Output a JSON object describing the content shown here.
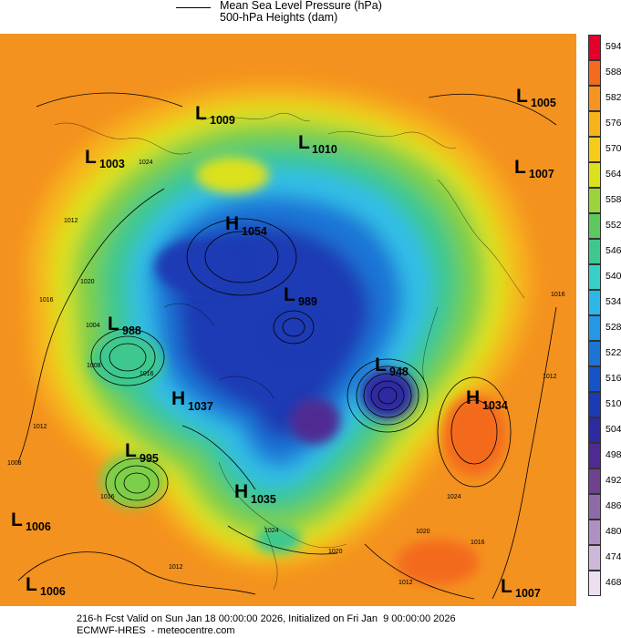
{
  "header": {
    "legend_msl": "Mean Sea Level Pressure (hPa)",
    "legend_hgt": "500-hPa Heights (dam)"
  },
  "colorbar": {
    "levels": [
      "594",
      "588",
      "582",
      "576",
      "570",
      "564",
      "558",
      "552",
      "546",
      "540",
      "534",
      "528",
      "522",
      "516",
      "510",
      "504",
      "498",
      "492",
      "486",
      "480",
      "474",
      "468"
    ],
    "colors": [
      "#e4002b",
      "#f46a1e",
      "#f7931f",
      "#f8b21a",
      "#f6cc1a",
      "#dbe11c",
      "#9ad33a",
      "#5bc95d",
      "#3ec88e",
      "#38d0c6",
      "#2db7e8",
      "#2597e6",
      "#1c74d6",
      "#1652c8",
      "#1b3bb4",
      "#2f2aa2",
      "#4f2a93",
      "#6f428f",
      "#8f6aa9",
      "#ae90c2",
      "#cdb8db",
      "#ece0f0"
    ]
  },
  "systems": [
    {
      "type": "L",
      "value": "1003"
    },
    {
      "type": "L",
      "value": "1009"
    },
    {
      "type": "L",
      "value": "1010"
    },
    {
      "type": "L",
      "value": "1005"
    },
    {
      "type": "L",
      "value": "1007"
    },
    {
      "type": "H",
      "value": "1054"
    },
    {
      "type": "L",
      "value": "988"
    },
    {
      "type": "L",
      "value": "989"
    },
    {
      "type": "L",
      "value": "948"
    },
    {
      "type": "H",
      "value": "1037"
    },
    {
      "type": "H",
      "value": "1034"
    },
    {
      "type": "L",
      "value": "995"
    },
    {
      "type": "H",
      "value": "1035"
    },
    {
      "type": "L",
      "value": "1006"
    },
    {
      "type": "L",
      "value": "1006"
    },
    {
      "type": "L",
      "value": "1007"
    }
  ],
  "isobar_labels": [
    "1024",
    "1012",
    "1020",
    "1016",
    "1004",
    "1008",
    "1016",
    "1012",
    "1008",
    "1016",
    "1024",
    "1020",
    "1012",
    "1016",
    "1020",
    "1024",
    "1012",
    "1016",
    "1012"
  ],
  "footer": {
    "line1": "216-h Fcst Valid on Sun Jan 18 00:00:00 2026, Initialized on Fri Jan  9 00:00:00 2026",
    "line2": "ECMWF-HRES  - meteocentre.com"
  }
}
